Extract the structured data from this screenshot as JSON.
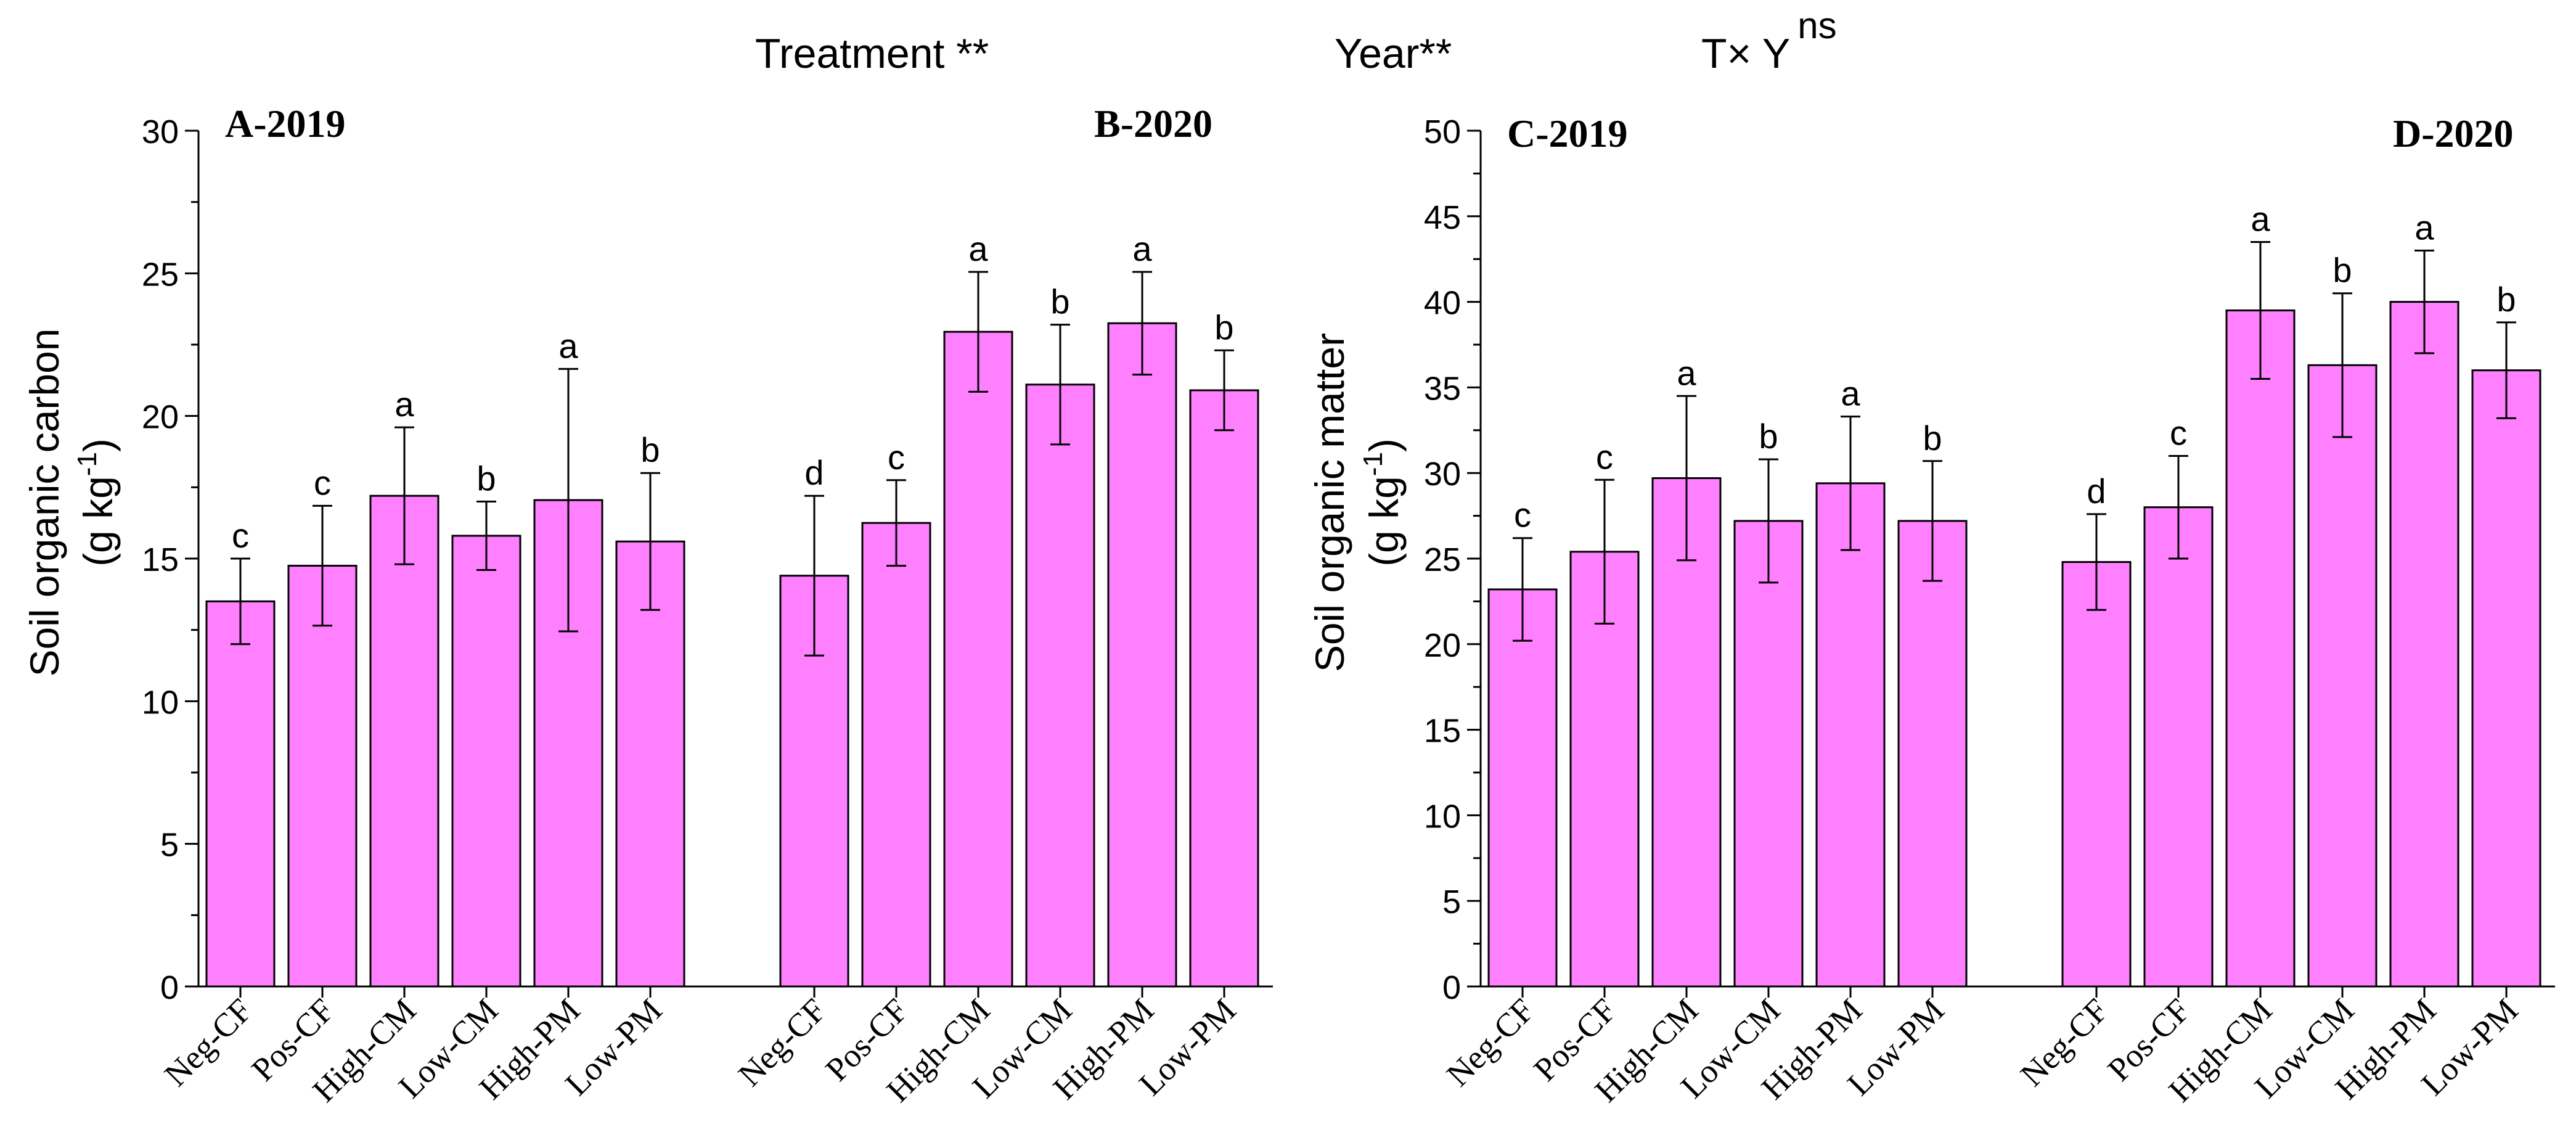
{
  "header": {
    "treatment": "Treatment **",
    "year": "Year**",
    "interaction_base": "T× Y",
    "interaction_sup": "ns"
  },
  "colors": {
    "bar_fill": "#FF80FF",
    "bar_stroke": "#000000",
    "axis": "#000000"
  },
  "chart_data": [
    {
      "type": "bar",
      "ylabel": "Soil organic carbon",
      "ylabel_unit_base": "(g kg",
      "ylabel_unit_sup": "-1",
      "ylabel_unit_close": ")",
      "ylim": [
        0,
        30
      ],
      "yticks": [
        0,
        5,
        10,
        15,
        20,
        25,
        30
      ],
      "groups": [
        {
          "title": "A-2019",
          "categories": [
            "Neg-CF",
            "Pos-CF",
            "High-CM",
            "Low-CM",
            "High-PM",
            "Low-PM"
          ],
          "values": [
            13.5,
            14.75,
            17.2,
            15.8,
            17.05,
            15.6
          ],
          "errors": [
            1.5,
            2.1,
            2.4,
            1.2,
            4.6,
            2.4
          ],
          "letters": [
            "c",
            "c",
            "a",
            "b",
            "a",
            "b"
          ]
        },
        {
          "title": "B-2020",
          "categories": [
            "Neg-CF",
            "Pos-CF",
            "High-CM",
            "Low-CM",
            "High-PM",
            "Low-PM"
          ],
          "values": [
            14.4,
            16.25,
            22.95,
            21.1,
            23.25,
            20.9
          ],
          "errors": [
            2.8,
            1.5,
            2.1,
            2.1,
            1.8,
            1.4
          ],
          "letters": [
            "d",
            "c",
            "a",
            "b",
            "a",
            "b"
          ]
        }
      ]
    },
    {
      "type": "bar",
      "ylabel": "Soil organic matter",
      "ylabel_unit_base": "(g kg",
      "ylabel_unit_sup": "-1",
      "ylabel_unit_close": ")",
      "ylim": [
        0,
        50
      ],
      "yticks": [
        0,
        5,
        10,
        15,
        20,
        25,
        30,
        35,
        40,
        45,
        50
      ],
      "groups": [
        {
          "title": "C-2019",
          "categories": [
            "Neg-CF",
            "Pos-CF",
            "High-CM",
            "Low-CM",
            "High-PM",
            "Low-PM"
          ],
          "values": [
            23.2,
            25.4,
            29.7,
            27.2,
            29.4,
            27.2
          ],
          "errors": [
            3.0,
            4.2,
            4.8,
            3.6,
            3.9,
            3.5
          ],
          "letters": [
            "c",
            "c",
            "a",
            "b",
            "a",
            "b"
          ]
        },
        {
          "title": "D-2020",
          "categories": [
            "Neg-CF",
            "Pos-CF",
            "High-CM",
            "Low-CM",
            "High-PM",
            "Low-PM"
          ],
          "values": [
            24.8,
            28.0,
            39.5,
            36.3,
            40.0,
            36.0
          ],
          "errors": [
            2.8,
            3.0,
            4.0,
            4.2,
            3.0,
            2.8
          ],
          "letters": [
            "d",
            "c",
            "a",
            "b",
            "a",
            "b"
          ]
        }
      ]
    }
  ]
}
